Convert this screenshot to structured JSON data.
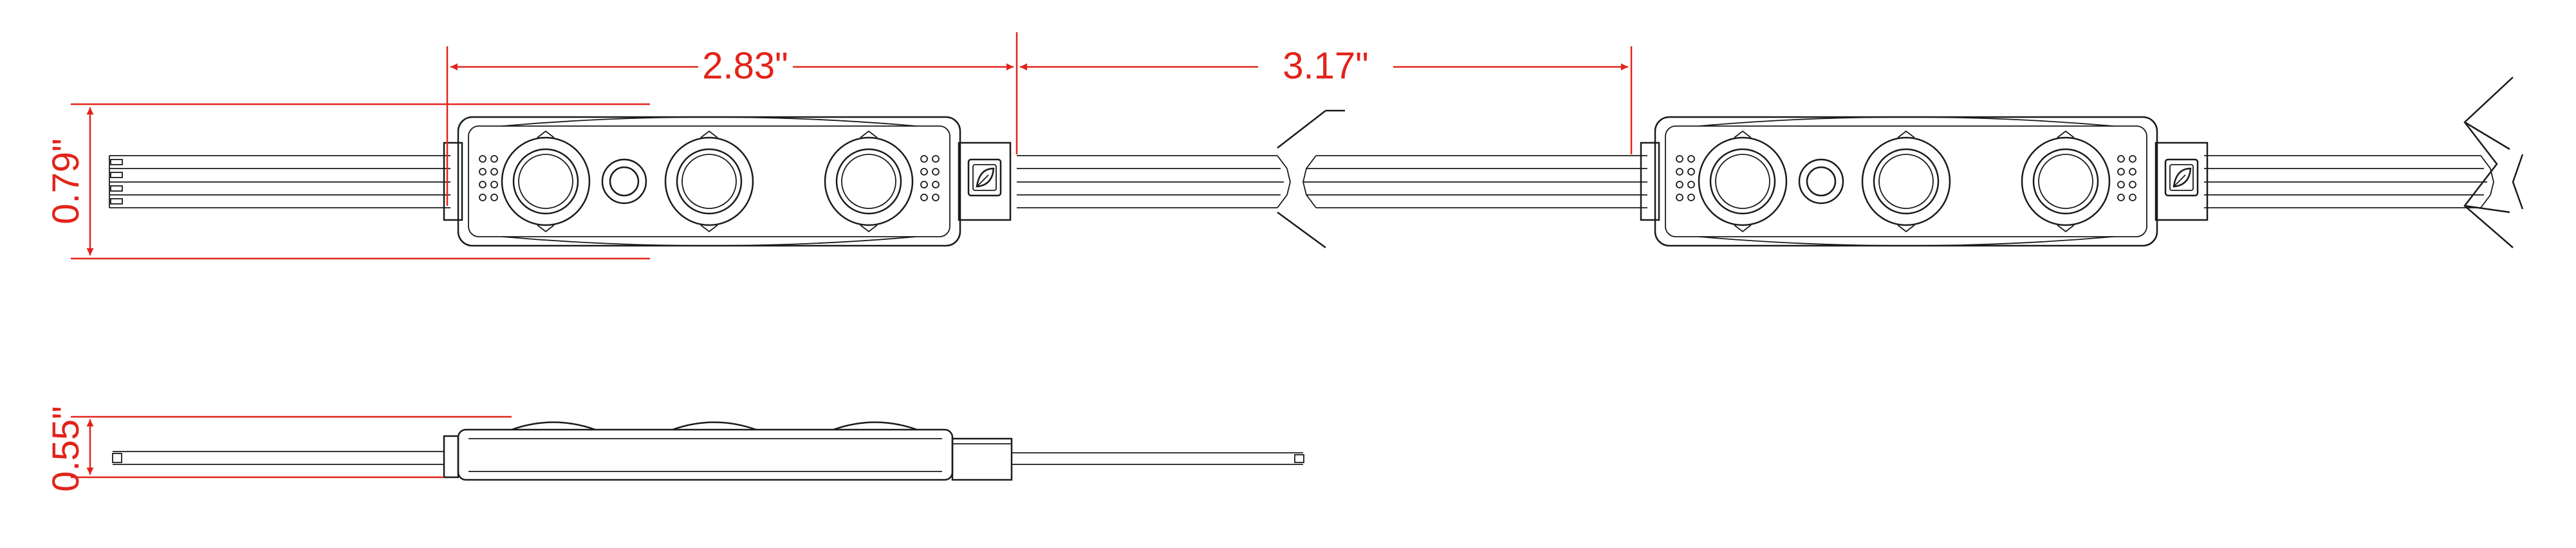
{
  "colors": {
    "dimension": "#e2231a",
    "line": "#1a1a1a",
    "background": "#ffffff"
  },
  "dimensions": {
    "module_length": "2.83\"",
    "module_spacing": "3.17\"",
    "module_width": "0.79\"",
    "module_height": "0.55\""
  },
  "icons": {
    "module_logo": "leaf-logo-icon"
  }
}
